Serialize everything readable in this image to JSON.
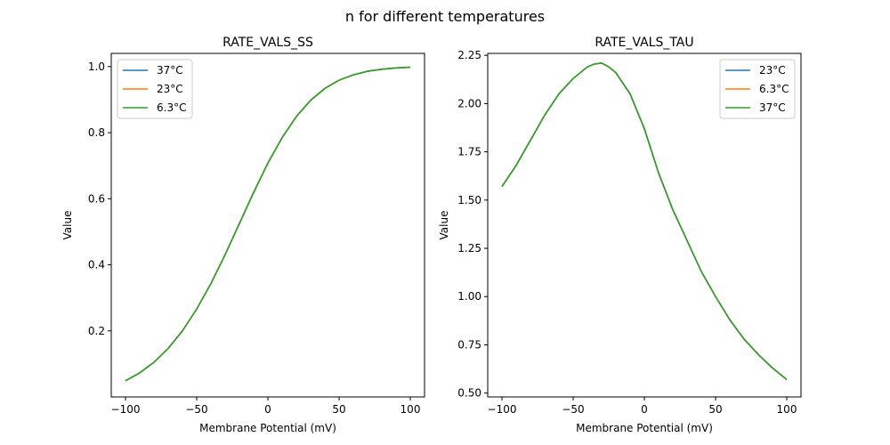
{
  "figure": {
    "suptitle": "n for different temperatures"
  },
  "chart_data": [
    {
      "type": "line",
      "title": "RATE_VALS_SS",
      "xlabel": "Membrane Potential (mV)",
      "ylabel": "Value",
      "xlim": [
        -110,
        110
      ],
      "ylim": [
        0.0,
        1.04
      ],
      "xticks": [
        -100,
        -50,
        0,
        50,
        100
      ],
      "xtick_labels": [
        "−100",
        "−50",
        "0",
        "50",
        "100"
      ],
      "yticks": [
        0.2,
        0.4,
        0.6,
        0.8,
        1.0
      ],
      "ytick_labels": [
        "0.2",
        "0.4",
        "0.6",
        "0.8",
        "1.0"
      ],
      "legend_position": "upper-left",
      "x": [
        -100,
        -90,
        -80,
        -70,
        -60,
        -50,
        -40,
        -30,
        -20,
        -10,
        0,
        10,
        20,
        30,
        40,
        50,
        60,
        70,
        80,
        90,
        100
      ],
      "series": [
        {
          "name": "37°C",
          "color": "#1f77b4",
          "values": [
            0.049,
            0.073,
            0.105,
            0.147,
            0.2,
            0.266,
            0.343,
            0.431,
            0.525,
            0.619,
            0.708,
            0.785,
            0.849,
            0.898,
            0.934,
            0.959,
            0.975,
            0.986,
            0.992,
            0.996,
            0.998
          ]
        },
        {
          "name": "23°C",
          "color": "#ff7f0e",
          "values": [
            0.049,
            0.073,
            0.105,
            0.147,
            0.2,
            0.266,
            0.343,
            0.431,
            0.525,
            0.619,
            0.708,
            0.785,
            0.849,
            0.898,
            0.934,
            0.959,
            0.975,
            0.986,
            0.992,
            0.996,
            0.998
          ]
        },
        {
          "name": "6.3°C",
          "color": "#2ca02c",
          "values": [
            0.049,
            0.073,
            0.105,
            0.147,
            0.2,
            0.266,
            0.343,
            0.431,
            0.525,
            0.619,
            0.708,
            0.785,
            0.849,
            0.898,
            0.934,
            0.959,
            0.975,
            0.986,
            0.992,
            0.996,
            0.998
          ]
        }
      ]
    },
    {
      "type": "line",
      "title": "RATE_VALS_TAU",
      "xlabel": "Membrane Potential (mV)",
      "ylabel": "Value",
      "xlim": [
        -110,
        110
      ],
      "ylim": [
        0.48,
        2.26
      ],
      "xticks": [
        -100,
        -50,
        0,
        50,
        100
      ],
      "xtick_labels": [
        "−100",
        "−50",
        "0",
        "50",
        "100"
      ],
      "yticks": [
        0.5,
        0.75,
        1.0,
        1.25,
        1.5,
        1.75,
        2.0,
        2.25
      ],
      "ytick_labels": [
        "0.50",
        "0.75",
        "1.00",
        "1.25",
        "1.50",
        "1.75",
        "2.00",
        "2.25"
      ],
      "legend_position": "upper-right",
      "x": [
        -100,
        -90,
        -80,
        -70,
        -60,
        -50,
        -40,
        -35,
        -30,
        -25,
        -20,
        -10,
        0,
        10,
        20,
        30,
        40,
        50,
        60,
        70,
        80,
        90,
        100
      ],
      "series": [
        {
          "name": "23°C",
          "color": "#1f77b4",
          "values": [
            1.57,
            1.68,
            1.81,
            1.94,
            2.05,
            2.13,
            2.19,
            2.205,
            2.21,
            2.19,
            2.16,
            2.05,
            1.87,
            1.64,
            1.45,
            1.29,
            1.13,
            1.0,
            0.88,
            0.78,
            0.7,
            0.63,
            0.57
          ]
        },
        {
          "name": "6.3°C",
          "color": "#ff7f0e",
          "values": [
            1.57,
            1.68,
            1.81,
            1.94,
            2.05,
            2.13,
            2.19,
            2.205,
            2.21,
            2.19,
            2.16,
            2.05,
            1.87,
            1.64,
            1.45,
            1.29,
            1.13,
            1.0,
            0.88,
            0.78,
            0.7,
            0.63,
            0.57
          ]
        },
        {
          "name": "37°C",
          "color": "#2ca02c",
          "values": [
            1.57,
            1.68,
            1.81,
            1.94,
            2.05,
            2.13,
            2.19,
            2.205,
            2.21,
            2.19,
            2.16,
            2.05,
            1.87,
            1.64,
            1.45,
            1.29,
            1.13,
            1.0,
            0.88,
            0.78,
            0.7,
            0.63,
            0.57
          ]
        }
      ]
    }
  ]
}
